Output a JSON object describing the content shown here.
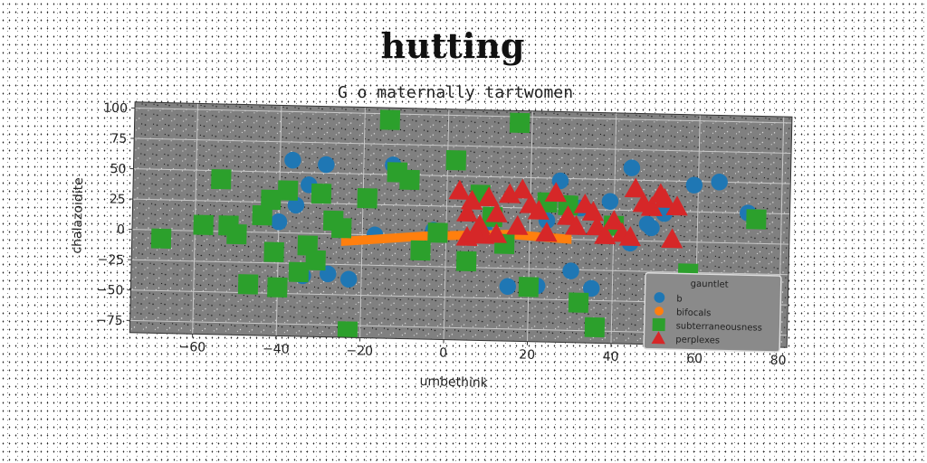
{
  "chart_data": {
    "type": "scatter",
    "title": "hutting",
    "subtitle": "G o maternally tartwomen",
    "xlabel": "umbethink",
    "ylabel": "chalazoidite",
    "xlim": [
      -75,
      82
    ],
    "ylim": [
      -85,
      105
    ],
    "xticks": [
      -60,
      -40,
      -20,
      0,
      20,
      40,
      60,
      80
    ],
    "yticks": [
      -75,
      -50,
      -25,
      0,
      25,
      50,
      75,
      100
    ],
    "grid": true,
    "legend": {
      "title": "gauntlet",
      "placement": "lower-right"
    },
    "series": [
      {
        "name": "b",
        "marker": "circle",
        "color": "#1f77b4",
        "x": [
          -37,
          -33,
          -29,
          -40,
          -36,
          -34,
          -28,
          -23,
          -13,
          -3,
          -17,
          9,
          15,
          22,
          27,
          30,
          35,
          39,
          44,
          49,
          52,
          59,
          65,
          72,
          48,
          32,
          44,
          24
        ],
        "y": [
          60,
          40,
          57,
          9,
          23,
          -35,
          -33,
          -37,
          58,
          5,
          0,
          8,
          -40,
          -39,
          48,
          -26,
          -40,
          32,
          60,
          11,
          23,
          47,
          50,
          25,
          14,
          26,
          -2,
          15
        ]
      },
      {
        "name": "bifocals",
        "marker": "band",
        "color": "#ff7f0e",
        "x": [
          -25,
          -5,
          15,
          30
        ],
        "y": [
          -6,
          0,
          3,
          0
        ]
      },
      {
        "name": "subterraneousness",
        "marker": "square",
        "color": "#2ca02c",
        "x": [
          -68,
          -58,
          -54,
          -52,
          -50,
          -47,
          -44,
          -42,
          -41,
          -40,
          -38,
          -35,
          -33,
          -31,
          -30,
          -27,
          -25,
          -23,
          -19,
          -14,
          -12,
          -9,
          -6,
          -2,
          2,
          5,
          8,
          11,
          14,
          17,
          20,
          24,
          29,
          32,
          36,
          40,
          58,
          74
        ],
        "y": [
          -7,
          5,
          43,
          5,
          -2,
          -43,
          14,
          27,
          -16,
          -45,
          35,
          -32,
          -10,
          -22,
          33,
          11,
          5,
          -80,
          30,
          95,
          52,
          46,
          -12,
          3,
          63,
          -20,
          35,
          17,
          -5,
          95,
          -40,
          30,
          28,
          -52,
          -72,
          12,
          -26,
          20
        ]
      },
      {
        "name": "perplexes",
        "marker": "triangle",
        "color": "#d62728",
        "x": [
          3,
          5,
          6,
          8,
          9,
          10,
          12,
          15,
          17,
          18,
          20,
          22,
          24,
          26,
          29,
          31,
          33,
          35,
          36,
          38,
          40,
          42,
          45,
          47,
          49,
          51,
          52,
          54,
          55,
          5,
          7,
          12,
          44
        ],
        "y": [
          38,
          20,
          30,
          10,
          2,
          33,
          20,
          36,
          10,
          40,
          28,
          23,
          5,
          38,
          19,
          11,
          29,
          23,
          11,
          4,
          16,
          6,
          43,
          31,
          28,
          39,
          35,
          2,
          29,
          0,
          3,
          3,
          3
        ]
      }
    ]
  }
}
